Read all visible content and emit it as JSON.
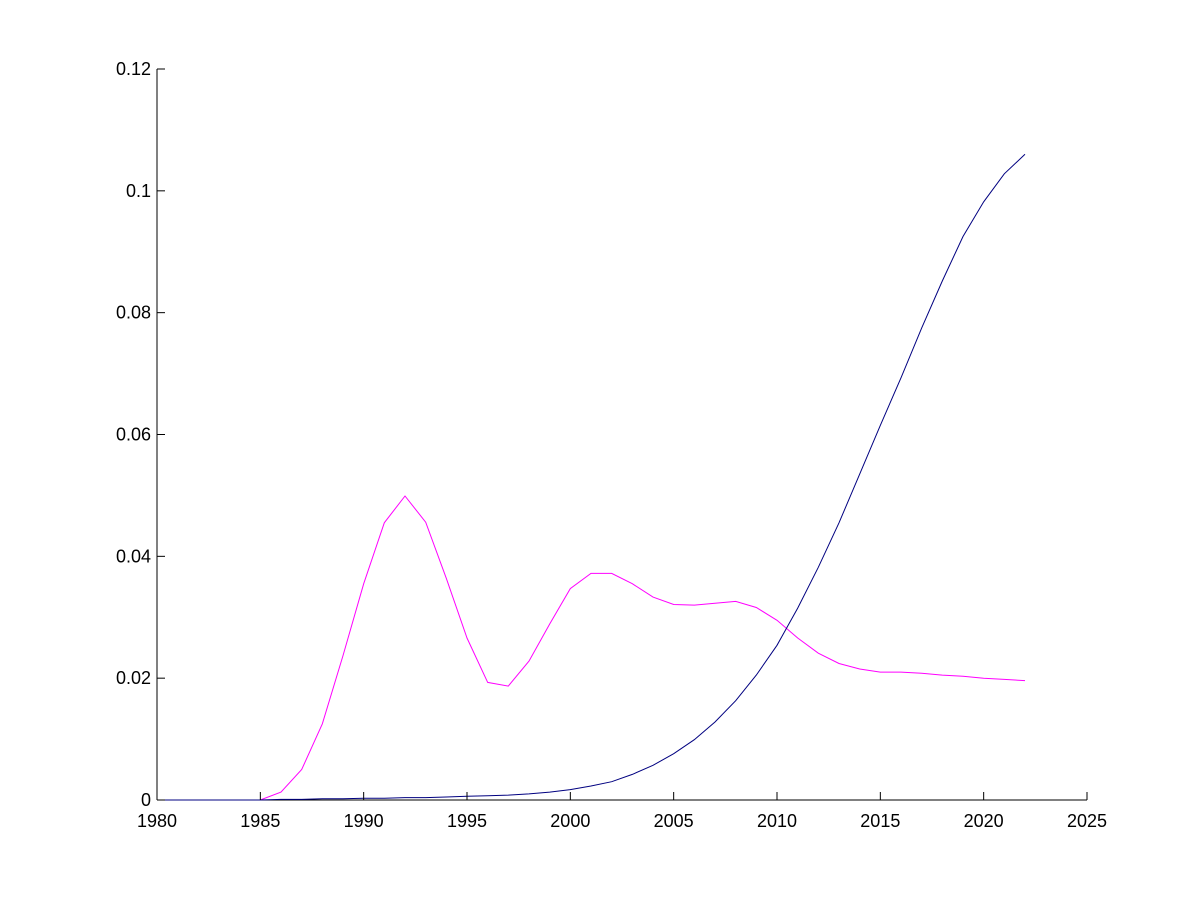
{
  "chart_data": {
    "type": "line",
    "title": "",
    "xlabel": "",
    "ylabel": "",
    "xlim": [
      1980,
      2025
    ],
    "ylim": [
      0,
      0.12
    ],
    "grid": false,
    "x_ticks": [
      1980,
      1985,
      1990,
      1995,
      2000,
      2005,
      2010,
      2015,
      2020,
      2025
    ],
    "x_tick_labels": [
      "1980",
      "1985",
      "1990",
      "1995",
      "2000",
      "2005",
      "2010",
      "2015",
      "2020",
      "2025"
    ],
    "y_ticks": [
      0,
      0.02,
      0.04,
      0.06,
      0.08,
      0.1,
      0.12
    ],
    "y_tick_labels": [
      "0",
      "0.02",
      "0.04",
      "0.06",
      "0.08",
      "0.1",
      "0.12"
    ],
    "series": [
      {
        "color": "#ff00ff",
        "x": [
          1980,
          1981,
          1982,
          1983,
          1984,
          1985,
          1986,
          1987,
          1988,
          1989,
          1990,
          1991,
          1992,
          1993,
          1994,
          1995,
          1996,
          1997,
          1998,
          1999,
          2000,
          2001,
          2002,
          2003,
          2004,
          2005,
          2006,
          2007,
          2008,
          2009,
          2010,
          2011,
          2012,
          2013,
          2014,
          2015,
          2016,
          2017,
          2018,
          2019,
          2020,
          2021,
          2022
        ],
        "values": [
          0,
          0,
          0,
          0,
          0,
          0,
          0.0013,
          0.005,
          0.0125,
          0.0237,
          0.0355,
          0.0455,
          0.0499,
          0.0456,
          0.0364,
          0.0266,
          0.0193,
          0.0187,
          0.0228,
          0.0289,
          0.0347,
          0.0372,
          0.0372,
          0.0355,
          0.0333,
          0.0321,
          0.032,
          0.0323,
          0.0326,
          0.0316,
          0.0295,
          0.0266,
          0.0241,
          0.0224,
          0.0215,
          0.021,
          0.021,
          0.0208,
          0.0205,
          0.0203,
          0.02,
          0.0198,
          0.0196
        ]
      },
      {
        "color": "#000080",
        "x": [
          1980,
          1981,
          1982,
          1983,
          1984,
          1985,
          1986,
          1987,
          1988,
          1989,
          1990,
          1991,
          1992,
          1993,
          1994,
          1995,
          1996,
          1997,
          1998,
          1999,
          2000,
          2001,
          2002,
          2003,
          2004,
          2005,
          2006,
          2007,
          2008,
          2009,
          2010,
          2011,
          2012,
          2013,
          2014,
          2015,
          2016,
          2017,
          2018,
          2019,
          2020,
          2021,
          2022
        ],
        "values": [
          0,
          0,
          0,
          0,
          0,
          0,
          0.0001,
          0.0001,
          0.0002,
          0.0002,
          0.0003,
          0.0003,
          0.0004,
          0.0004,
          0.0005,
          0.0006,
          0.0007,
          0.0008,
          0.001,
          0.0013,
          0.0017,
          0.0023,
          0.003,
          0.0042,
          0.0057,
          0.0076,
          0.0099,
          0.0128,
          0.0163,
          0.0205,
          0.0254,
          0.0315,
          0.0382,
          0.0455,
          0.0535,
          0.0615,
          0.0693,
          0.0775,
          0.0852,
          0.0925,
          0.0982,
          0.1028,
          0.106
        ]
      }
    ]
  }
}
